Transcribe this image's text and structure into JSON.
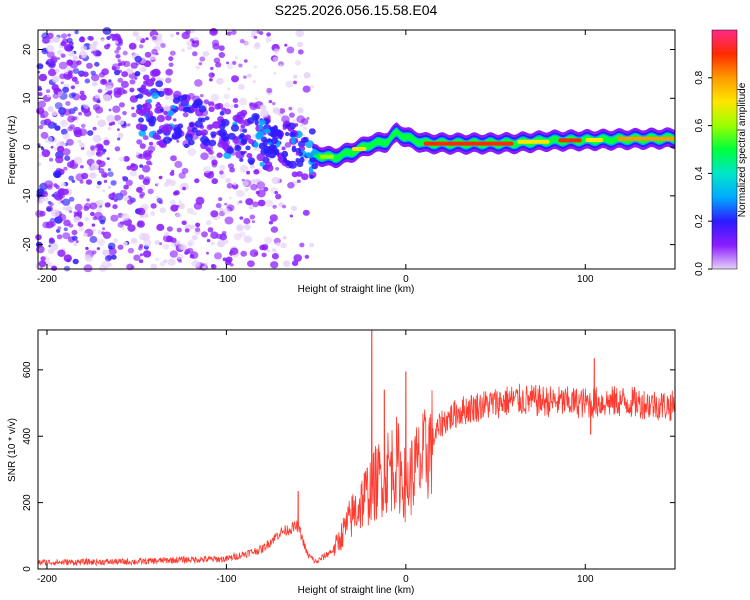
{
  "title": "S225.2026.056.15.58.E04",
  "chart_data": [
    {
      "type": "heatmap",
      "name": "spectrogram",
      "xlabel": "Height of straight line (km)",
      "ylabel": "Frequency (Hz)",
      "xlim": [
        -205,
        150
      ],
      "ylim": [
        -25,
        24
      ],
      "xticks": [
        -200,
        -100,
        0,
        100
      ],
      "yticks": [
        -20,
        -10,
        0,
        10,
        20
      ],
      "colorbar": {
        "label": "Normalized spectral amplitude",
        "range": [
          0.0,
          1.0
        ],
        "ticks": [
          0.0,
          0.2,
          0.4,
          0.6,
          0.8
        ],
        "colors": [
          "#e6d2f7",
          "#8a1cff",
          "#2c1cff",
          "#00aaff",
          "#00e6c8",
          "#00ff3c",
          "#9aff00",
          "#ffe600",
          "#ff9a00",
          "#ff2a00",
          "#ff2a8a"
        ]
      },
      "features": {
        "noise_region_km": [
          -205,
          -52
        ],
        "noisy_band_hz_at_-100km": [
          2,
          10
        ],
        "carrier_ridge": [
          [
            -52,
            -1.5
          ],
          [
            -40,
            -2.2
          ],
          [
            -30,
            -1.0
          ],
          [
            -20,
            0.5
          ],
          [
            -10,
            1.2
          ],
          [
            -5,
            3.0
          ],
          [
            0,
            2.0
          ],
          [
            10,
            0.8
          ],
          [
            30,
            0.7
          ],
          [
            60,
            0.8
          ],
          [
            80,
            1.3
          ],
          [
            100,
            1.4
          ],
          [
            120,
            1.6
          ],
          [
            150,
            1.8
          ]
        ]
      }
    },
    {
      "type": "line",
      "name": "snr",
      "xlabel": "Height of straight line (km)",
      "ylabel": "SNR (10 * v/v)",
      "xlim": [
        -205,
        150
      ],
      "ylim": [
        0,
        720
      ],
      "xticks": [
        -200,
        -100,
        0,
        100
      ],
      "yticks": [
        0,
        200,
        400,
        600
      ],
      "color": "#ff3b30",
      "series_profile": [
        [
          -205,
          20
        ],
        [
          -150,
          22
        ],
        [
          -125,
          28
        ],
        [
          -100,
          30
        ],
        [
          -80,
          60
        ],
        [
          -70,
          110
        ],
        [
          -60,
          130
        ],
        [
          -55,
          45
        ],
        [
          -50,
          20
        ],
        [
          -40,
          60
        ],
        [
          -30,
          160
        ],
        [
          -20,
          240
        ],
        [
          -10,
          300
        ],
        [
          -5,
          320
        ],
        [
          0,
          250
        ],
        [
          5,
          300
        ],
        [
          10,
          330
        ],
        [
          15,
          390
        ],
        [
          20,
          440
        ],
        [
          30,
          475
        ],
        [
          40,
          490
        ],
        [
          60,
          510
        ],
        [
          80,
          505
        ],
        [
          100,
          500
        ],
        [
          120,
          505
        ],
        [
          150,
          490
        ]
      ],
      "spikes": [
        {
          "x": -60,
          "y": 235
        },
        {
          "x": -19,
          "y": 720
        },
        {
          "x": -12,
          "y": 540
        },
        {
          "x": 0,
          "y": 595
        },
        {
          "x": 105,
          "y": 635
        },
        {
          "x": 103,
          "y": 405
        }
      ]
    }
  ]
}
